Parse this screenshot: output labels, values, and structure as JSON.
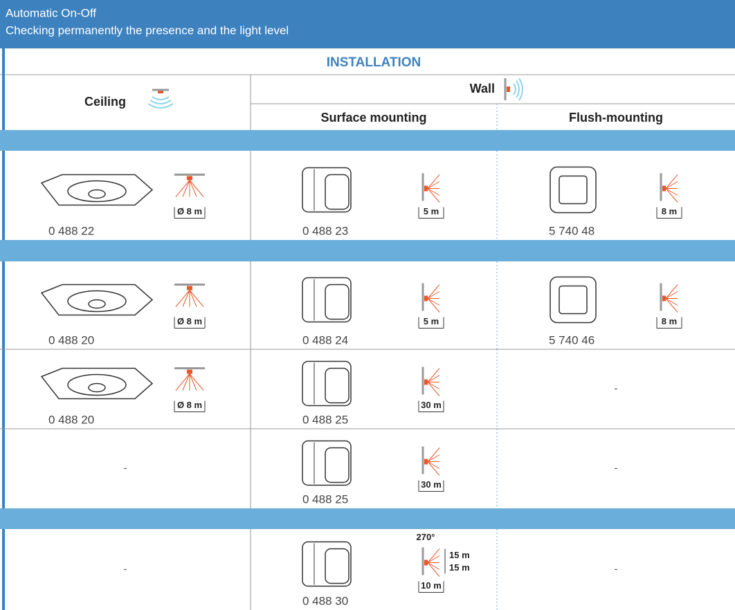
{
  "header": {
    "title": "Automatic On-Off",
    "subtitle": "Checking permanently the presence and the light level"
  },
  "table": {
    "caption": "INSTALLATION",
    "columns": {
      "ceiling": "Ceiling",
      "wall": "Wall",
      "surface": "Surface mounting",
      "flush": "Flush-mounting"
    },
    "rows": [
      [
        {
          "code": "0 488 22",
          "range": "Ø 8 m"
        },
        {
          "code": "0 488 23",
          "range": "5 m"
        },
        {
          "code": "5 740 48",
          "range": "8 m"
        }
      ],
      [
        {
          "code": "0 488 20",
          "range": "Ø 8 m"
        },
        {
          "code": "0 488 24",
          "range": "5 m"
        },
        {
          "code": "5 740 46",
          "range": "8 m"
        }
      ],
      [
        {
          "code": "0 488 20",
          "range": "Ø 8 m"
        },
        {
          "code": "0 488 25",
          "range": "30 m"
        },
        {
          "text": "-"
        }
      ],
      [
        {
          "text": "-"
        },
        {
          "code": "0 488 25",
          "range": "30 m"
        },
        {
          "text": "-"
        }
      ],
      [
        {
          "text": "-"
        },
        {
          "code": "0 488 30",
          "angle": "270°",
          "range_up": "15 m",
          "range_down": "15 m",
          "range": "10 m"
        },
        {
          "text": "-"
        }
      ]
    ]
  }
}
